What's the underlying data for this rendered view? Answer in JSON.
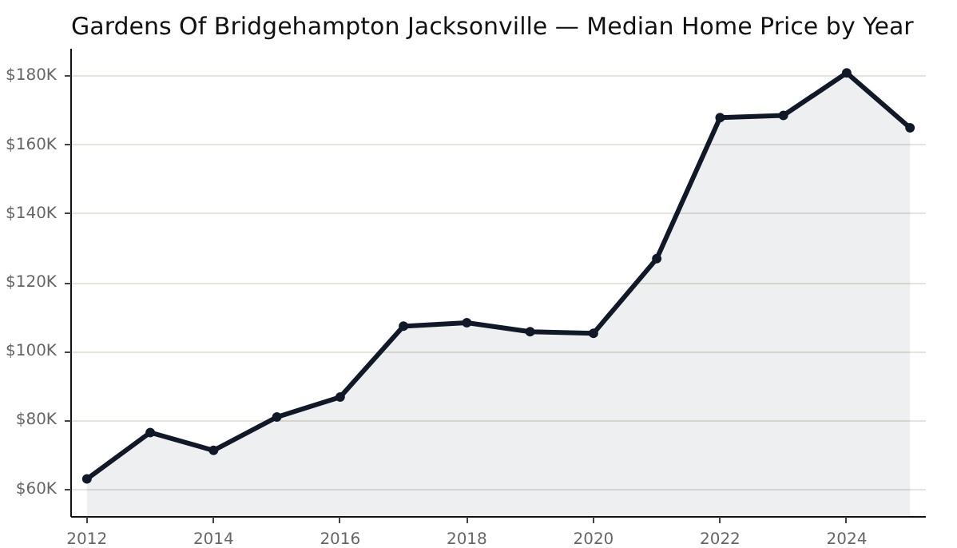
{
  "chart_data": {
    "type": "area",
    "title": "Gardens Of Bridgehampton Jacksonville — Median Home Price by Year",
    "x": [
      2012,
      2013,
      2014,
      2015,
      2016,
      2017,
      2018,
      2019,
      2020,
      2021,
      2022,
      2023,
      2024,
      2025
    ],
    "series": [
      {
        "color": "#111827",
        "values": [
          63000,
          76500,
          71300,
          81000,
          86800,
          107400,
          108400,
          105800,
          105300,
          127000,
          168000,
          168600,
          181000,
          165000
        ]
      }
    ],
    "xlim": [
      2011.75,
      2025.25
    ],
    "xticks": [
      2012,
      2014,
      2016,
      2018,
      2020,
      2022,
      2024
    ],
    "ylim": [
      52000,
      188000
    ],
    "yticks": [
      {
        "value": 60000,
        "label": "$60K"
      },
      {
        "value": 80000,
        "label": "$80K"
      },
      {
        "value": 100000,
        "label": "$100K"
      },
      {
        "value": 120000,
        "label": "$120K"
      },
      {
        "value": 140000,
        "label": "$140K"
      },
      {
        "value": 160000,
        "label": "$160K"
      },
      {
        "value": 180000,
        "label": "$180K"
      }
    ],
    "grid": "y",
    "marker": "circle",
    "line_style": "solid"
  }
}
